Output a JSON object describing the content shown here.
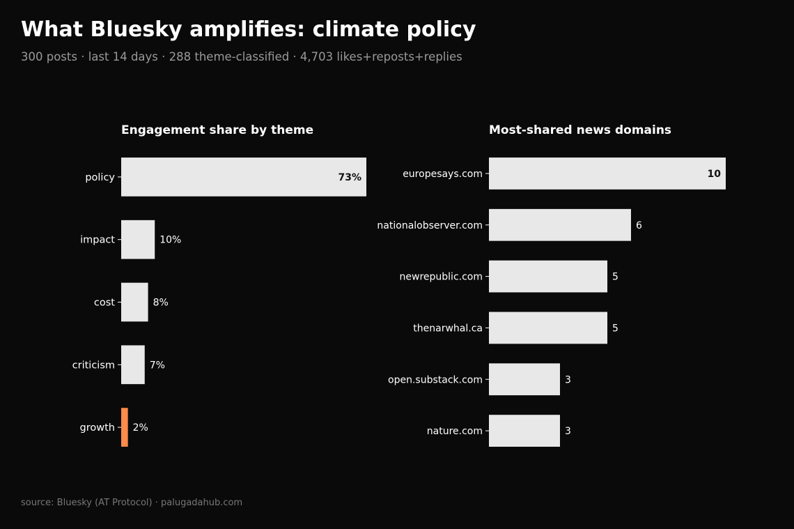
{
  "header": {
    "title": "What Bluesky amplifies: climate policy",
    "subtitle": "300 posts · last 14 days · 288 theme-classified · 4,703 likes+reposts+replies"
  },
  "footer": {
    "source": "source: Bluesky (AT Protocol) · palugadahub.com"
  },
  "colors": {
    "background": "#0a0a0a",
    "bar": "#e8e8e8",
    "highlight": "#ff8c4a"
  },
  "chart_data": [
    {
      "type": "bar",
      "orientation": "horizontal",
      "title": "Engagement share by theme",
      "categories": [
        "policy",
        "impact",
        "cost",
        "criticism",
        "growth"
      ],
      "values": [
        73,
        10,
        8,
        7,
        2
      ],
      "value_labels": [
        "73%",
        "10%",
        "8%",
        "7%",
        "2%"
      ],
      "highlight_category": "growth",
      "unit": "%",
      "xlim": [
        0,
        73
      ],
      "grid": false
    },
    {
      "type": "bar",
      "orientation": "horizontal",
      "title": "Most-shared news domains",
      "categories": [
        "europesays.com",
        "nationalobserver.com",
        "newrepublic.com",
        "thenarwhal.ca",
        "open.substack.com",
        "nature.com"
      ],
      "values": [
        10,
        6,
        5,
        5,
        3,
        3
      ],
      "value_labels": [
        "10",
        "6",
        "5",
        "5",
        "3",
        "3"
      ],
      "xlim": [
        0,
        10
      ],
      "grid": false
    }
  ]
}
